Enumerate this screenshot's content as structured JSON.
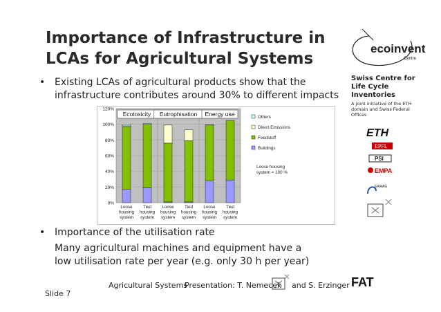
{
  "slide": {
    "title": "Importance of Infrastructure in LCAs for Agricultural Systems",
    "bullet1": "Existing LCAs of agricultural products show that the infrastructure contributes around 30% to different impacts",
    "bullet2": "Importance of the utilisation rate",
    "bullet2_sub": "Many agricultural machines and equipment have a low utilisation rate per year (e.g. only 30 h per year)",
    "bullet_symbol": "•",
    "slide_number": "Slide 7",
    "footer_left": "Agricultural Systems",
    "footer_presentation": "Presentation: T. Nemecek",
    "footer_and": "and S. Erzinger"
  },
  "sidebar": {
    "logo_text": "ecoinvent",
    "logo_sub": "Centre",
    "org_title": "Swiss Centre for Life Cycle Inventories",
    "org_sub": "A joint initiative of the ETH domain and Swiss Federal Offices",
    "logos": [
      "ETH",
      "EPFL",
      "PSI",
      "EMPA",
      "EAWAG"
    ],
    "fat_logo": "FAT"
  },
  "chart_data": {
    "type": "bar",
    "stacked": true,
    "group_labels": [
      "Ecotoxicity",
      "Eutrophisation",
      "Energy use"
    ],
    "categories": [
      "Loose housing system",
      "Tied housing system",
      "Loose housing system",
      "Tied housing system",
      "Loose housing system",
      "Tied housing system"
    ],
    "ylim": [
      0,
      120
    ],
    "yticks": [
      "0%",
      "20%",
      "40%",
      "60%",
      "80%",
      "100%",
      "120%"
    ],
    "series": [
      {
        "name": "Buildings",
        "color": "#9999ff",
        "values": [
          17,
          19,
          1,
          1,
          28,
          29
        ]
      },
      {
        "name": "Feedstuff",
        "color": "#80c000",
        "values": [
          80,
          81,
          75,
          78,
          71,
          76
        ]
      },
      {
        "name": "Direct Emissions",
        "color": "#ffffcc",
        "values": [
          1,
          0,
          23,
          14,
          0,
          0
        ]
      },
      {
        "name": "Others",
        "color": "#ccffff",
        "values": [
          2,
          1,
          0,
          0,
          1,
          0
        ]
      }
    ],
    "legend_order": [
      "Others",
      "Direct Emissions",
      "Feedstuff",
      "Buildings"
    ],
    "legend_position": "right",
    "annotation": "Loose housing system = 100 %"
  }
}
